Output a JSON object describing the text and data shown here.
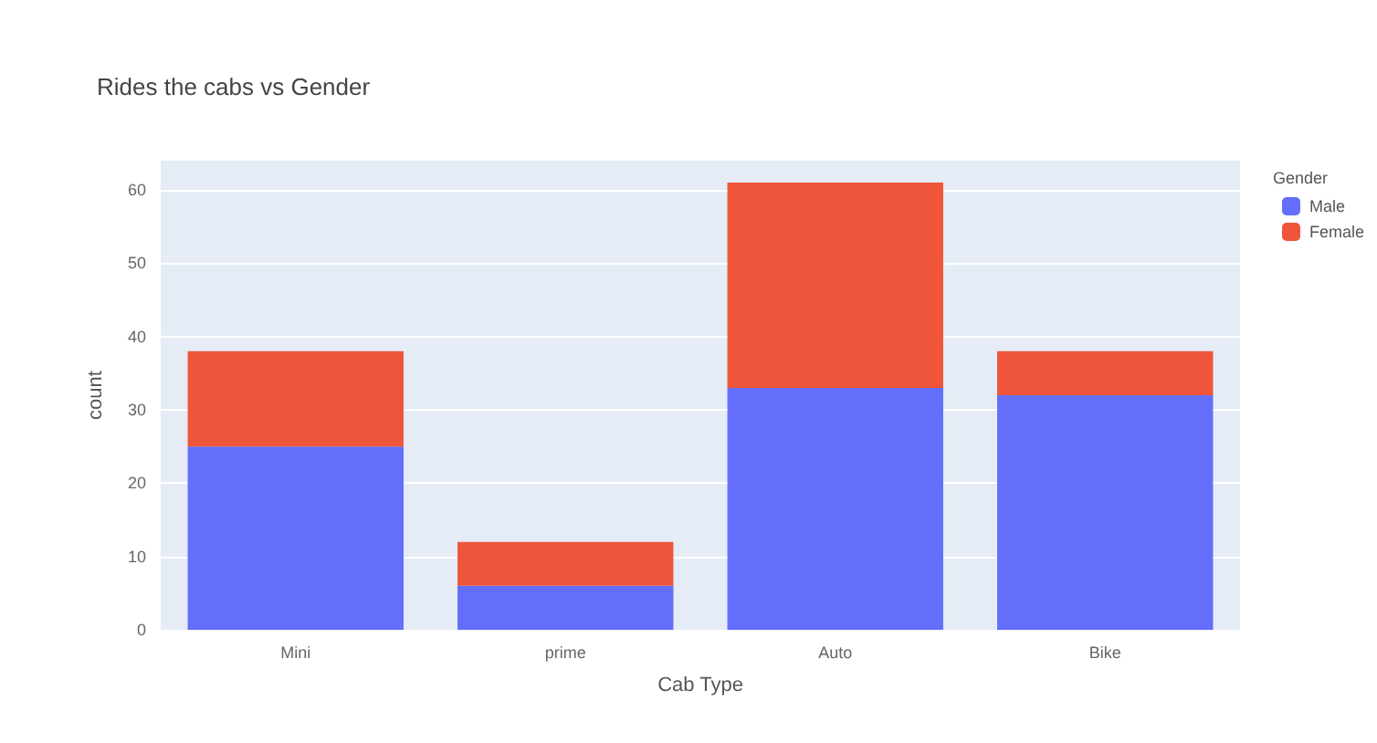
{
  "chart_data": {
    "type": "bar",
    "title": "Rides the cabs vs Gender",
    "xlabel": "Cab Type",
    "ylabel": "count",
    "legend_title": "Gender",
    "categories": [
      "Mini",
      "prime",
      "Auto",
      "Bike"
    ],
    "series": [
      {
        "name": "Male",
        "color": "#636efa",
        "values": [
          25,
          6,
          33,
          32
        ]
      },
      {
        "name": "Female",
        "color": "#ef553b",
        "values": [
          13,
          6,
          28,
          6
        ]
      }
    ],
    "stacked": true,
    "ylim": [
      0,
      64
    ],
    "yticks": [
      0,
      10,
      20,
      30,
      40,
      50,
      60
    ],
    "grid": "y",
    "legend": "top right"
  }
}
